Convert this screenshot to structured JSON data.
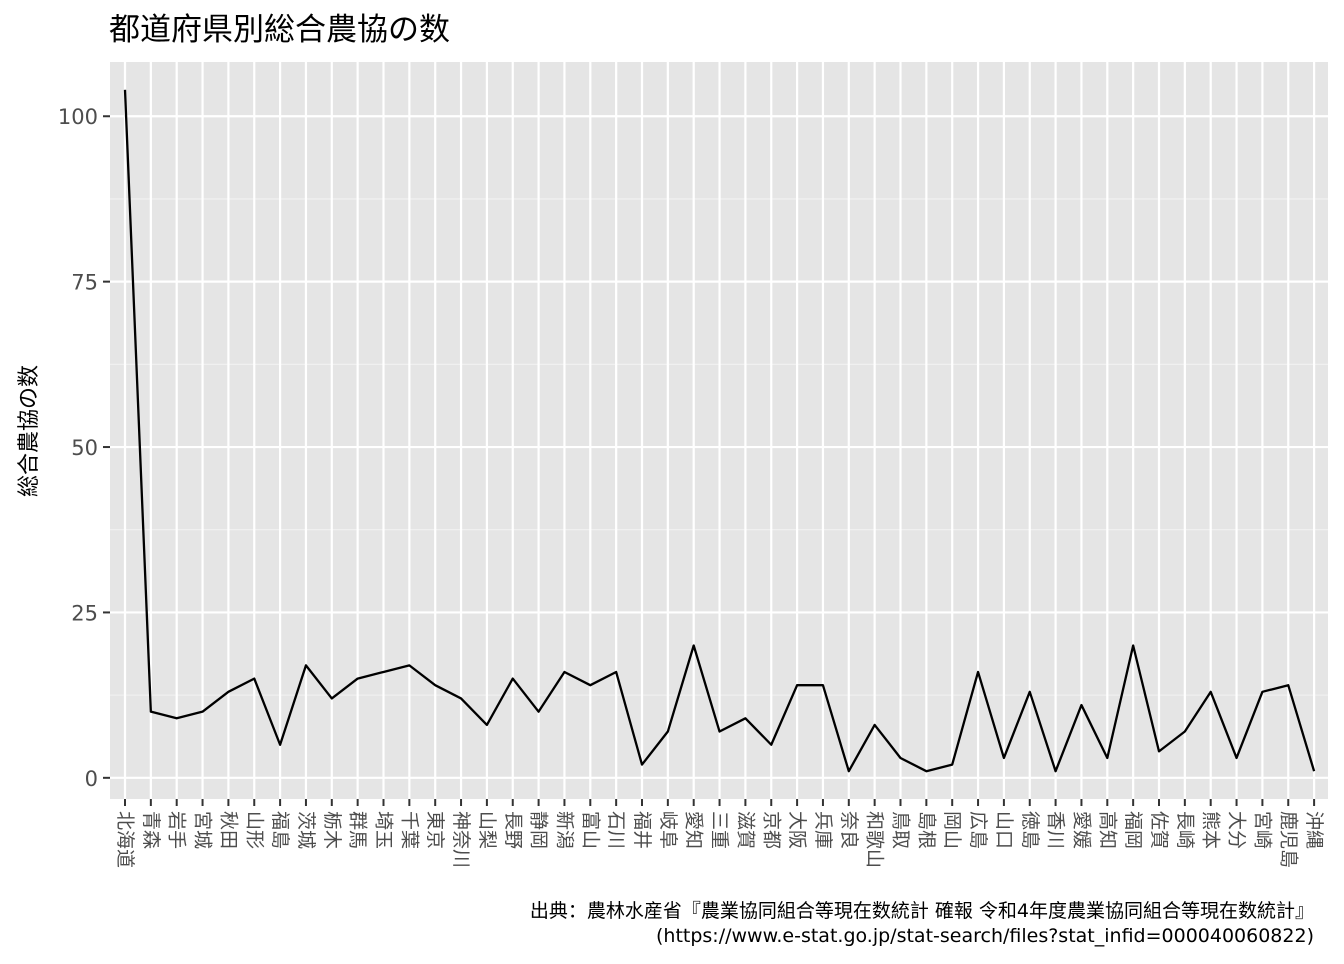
{
  "chart_data": {
    "type": "line",
    "title": "都道府県別総合農協の数",
    "xlabel": "",
    "ylabel": "総合農協の数",
    "categories": [
      "北海道",
      "青森",
      "岩手",
      "宮城",
      "秋田",
      "山形",
      "福島",
      "茨城",
      "栃木",
      "群馬",
      "埼玉",
      "千葉",
      "東京",
      "神奈川",
      "山梨",
      "長野",
      "静岡",
      "新潟",
      "富山",
      "石川",
      "福井",
      "岐阜",
      "愛知",
      "三重",
      "滋賀",
      "京都",
      "大阪",
      "兵庫",
      "奈良",
      "和歌山",
      "鳥取",
      "島根",
      "岡山",
      "広島",
      "山口",
      "徳島",
      "香川",
      "愛媛",
      "高知",
      "福岡",
      "佐賀",
      "長崎",
      "熊本",
      "大分",
      "宮崎",
      "鹿児島",
      "沖縄"
    ],
    "values": [
      104,
      10,
      9,
      10,
      13,
      15,
      5,
      17,
      12,
      15,
      16,
      17,
      14,
      12,
      8,
      15,
      10,
      16,
      14,
      16,
      2,
      7,
      20,
      7,
      9,
      5,
      14,
      14,
      1,
      8,
      3,
      1,
      2,
      16,
      3,
      13,
      1,
      11,
      3,
      20,
      4,
      7,
      13,
      3,
      13,
      14,
      1
    ],
    "yticks": [
      0,
      25,
      50,
      75,
      100
    ],
    "ylim": [
      -3.2,
      108.2
    ],
    "grid": true,
    "background": "#e5e5e5",
    "line_color": "#000000",
    "caption_lines": [
      "出典：農林水産省『農業協同組合等現在数統計 確報 令和4年度農業協同組合等現在数統計』",
      "(https://www.e-stat.go.jp/stat-search/files?stat_infid=000040060822)"
    ]
  }
}
